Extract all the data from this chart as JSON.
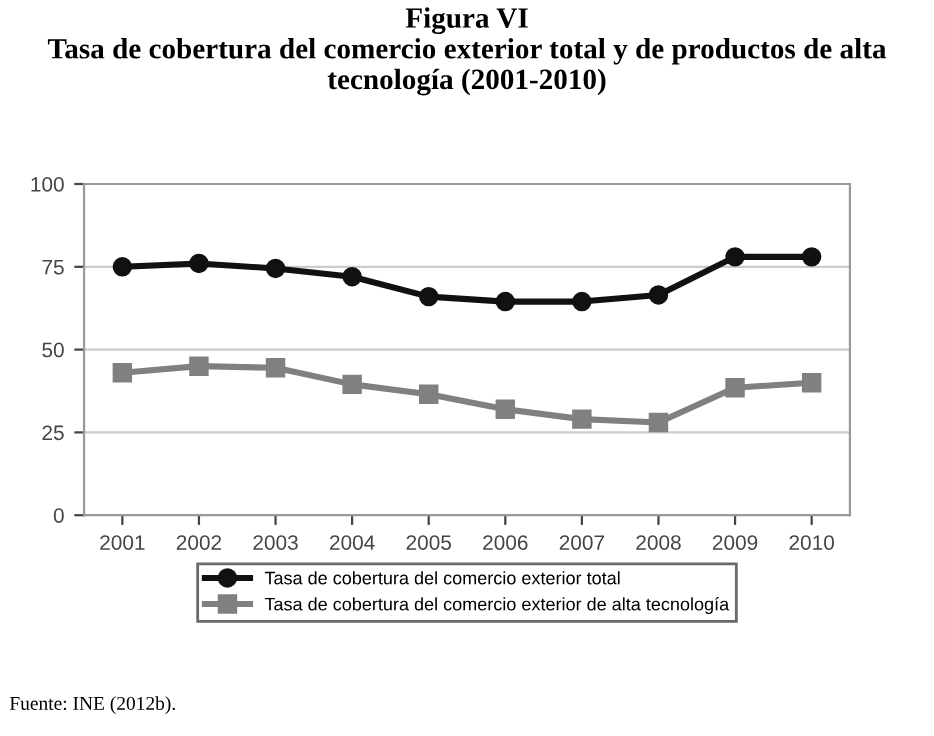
{
  "chart_data": {
    "type": "line",
    "title": "Figura VI\nTasa de cobertura del comercio exterior total y de productos de alta\ntecnología (2001-2010)",
    "categories": [
      "2001",
      "2002",
      "2003",
      "2004",
      "2005",
      "2006",
      "2007",
      "2008",
      "2009",
      "2010"
    ],
    "series": [
      {
        "name": "Tasa de cobertura del comercio exterior total",
        "color": "#111111",
        "marker": "circle",
        "values": [
          75,
          76,
          74.5,
          72,
          66,
          64.5,
          64.5,
          66.5,
          78,
          78
        ]
      },
      {
        "name": "Tasa de cobertura del comercio exterior de alta tecnología",
        "color": "#808080",
        "marker": "square",
        "values": [
          43,
          45,
          44.5,
          39.5,
          36.5,
          32,
          29,
          28,
          38.5,
          40
        ]
      }
    ],
    "ylim": [
      0,
      100
    ],
    "yticks": [
      0,
      25,
      50,
      75,
      100
    ],
    "grid": "y",
    "legend": "bottom",
    "annotations": [
      "Fuente: INE (2012b)."
    ]
  }
}
